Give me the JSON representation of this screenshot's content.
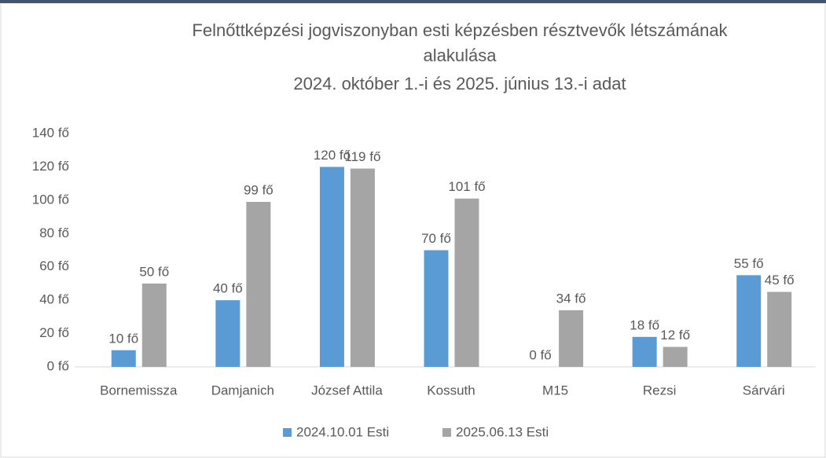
{
  "chart_data": {
    "type": "bar",
    "title": [
      "Felnőttképzési jogviszonyban esti képzésben résztvevők létszámának",
      "alakulása",
      "2024.  október 1.-i és 2025.  június 13.-i adat"
    ],
    "categories": [
      "Bornemissza",
      "Damjanich",
      "József Attila",
      "Kossuth",
      "M15",
      "Rezsi",
      "Sárvári"
    ],
    "series": [
      {
        "name": "2024.10.01 Esti",
        "color": "#5b9bd5",
        "values": [
          10,
          40,
          120,
          70,
          0,
          18,
          55
        ],
        "value_labels": [
          "10 fő",
          "40 fő",
          "120 fő",
          "70 fő",
          "0 fő",
          "18 fő",
          "55 fő"
        ]
      },
      {
        "name": "2025.06.13 Esti",
        "color": "#a5a5a5",
        "values": [
          50,
          99,
          119,
          101,
          34,
          12,
          45
        ],
        "value_labels": [
          "50 fő",
          "99 fő",
          "119 fő",
          "101 fő",
          "34 fő",
          "12 fő",
          "45 fő"
        ]
      }
    ],
    "ylim": [
      0,
      140
    ],
    "yticks": [
      {
        "value": 0,
        "label": "0 fő"
      },
      {
        "value": 20,
        "label": "20 fő"
      },
      {
        "value": 40,
        "label": "40 fő"
      },
      {
        "value": 60,
        "label": "60 fő"
      },
      {
        "value": 80,
        "label": "80 fő"
      },
      {
        "value": 100,
        "label": "100 fő"
      },
      {
        "value": 120,
        "label": "120 fő"
      },
      {
        "value": 140,
        "label": "140 fő"
      }
    ],
    "grid": false,
    "legend": "bottom"
  }
}
